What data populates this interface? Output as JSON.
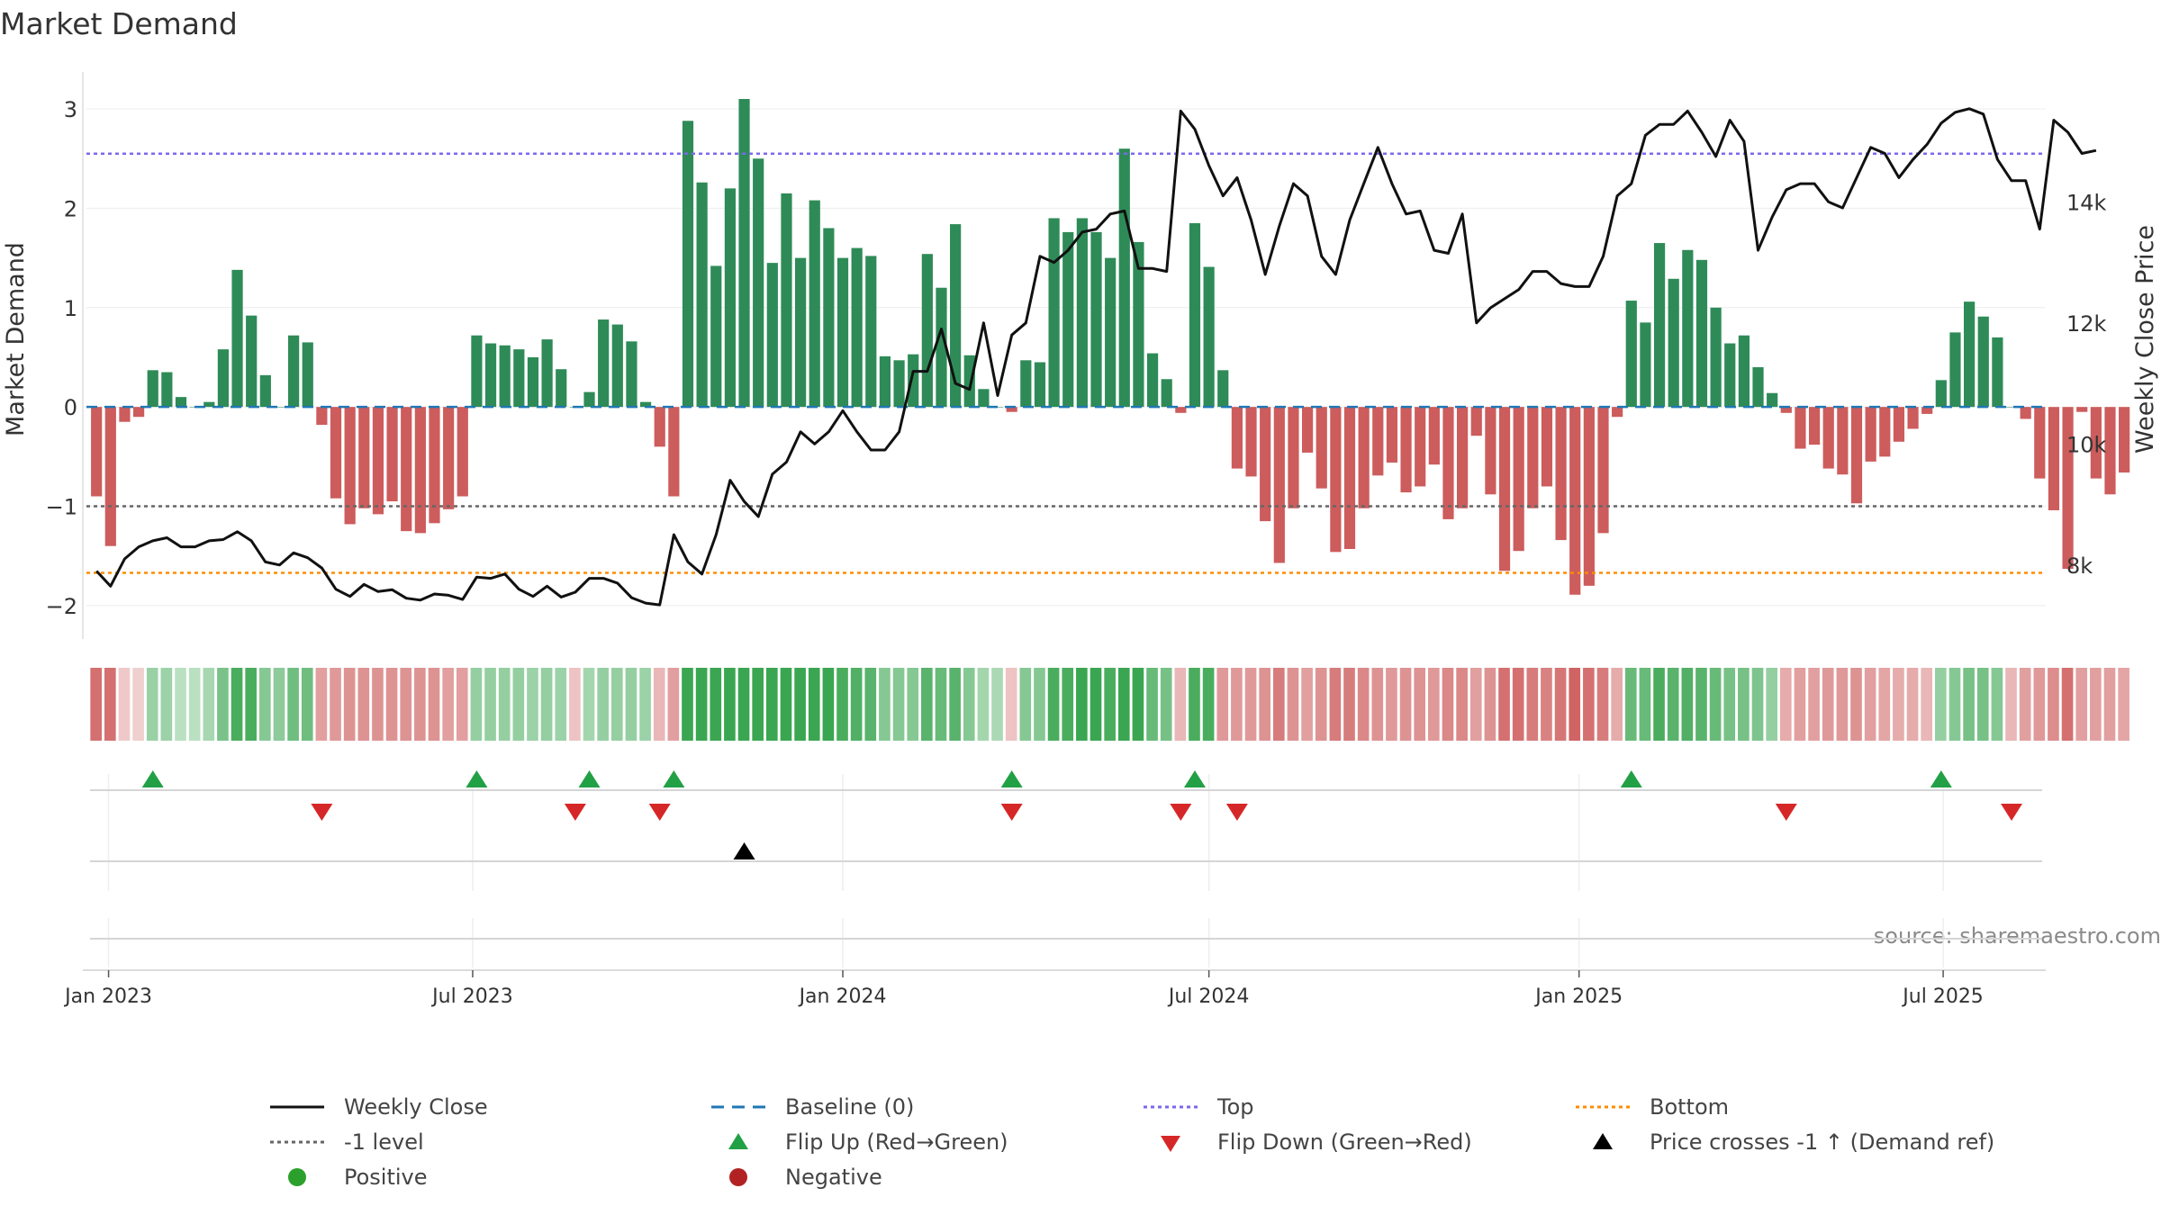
{
  "chart_data": {
    "type": "bar",
    "title": "Market Demand",
    "ylabel": "Market Demand",
    "y2label": "Weekly Close Price",
    "ylim": [
      -2.2,
      3.1
    ],
    "y2lim": [
      7000,
      15700
    ],
    "yticks": [
      -2,
      -1,
      0,
      1,
      2,
      3
    ],
    "ytick_labels": [
      "−2",
      "−1",
      "0",
      "1",
      "2",
      "3"
    ],
    "y2ticks": [
      8000,
      10000,
      12000,
      14000
    ],
    "y2tick_labels": [
      "8k",
      "10k",
      "12k",
      "14k"
    ],
    "x_start": "2022-12-26",
    "x_step_days": 7,
    "xlim_days": [
      -5,
      969
    ],
    "xticks": [
      {
        "label": "Jan 2023",
        "day": 6
      },
      {
        "label": "Jul 2023",
        "day": 187
      },
      {
        "label": "Jan 2024",
        "day": 371
      },
      {
        "label": "Jul 2024",
        "day": 553
      },
      {
        "label": "Jan 2025",
        "day": 737
      },
      {
        "label": "Jul 2025",
        "day": 918
      }
    ],
    "levels": {
      "top": 2.55,
      "minus_one": -1,
      "bottom": -1.67,
      "baseline": 0
    },
    "demand": [
      -0.9,
      -1.4,
      -0.15,
      -0.1,
      0.37,
      0.35,
      0.1,
      0.0,
      0.05,
      0.58,
      1.38,
      0.92,
      0.32,
      0.0,
      0.72,
      0.65,
      -0.18,
      -0.92,
      -1.18,
      -1.02,
      -1.08,
      -0.95,
      -1.25,
      -1.27,
      -1.17,
      -1.03,
      -0.9,
      0.72,
      0.64,
      0.62,
      0.58,
      0.5,
      0.68,
      0.38,
      0.0,
      0.15,
      0.88,
      0.83,
      0.66,
      0.05,
      -0.4,
      -0.9,
      2.88,
      2.26,
      1.42,
      2.2,
      3.1,
      2.5,
      1.45,
      2.15,
      1.5,
      2.08,
      1.8,
      1.5,
      1.6,
      1.52,
      0.51,
      0.47,
      0.53,
      1.54,
      1.2,
      1.84,
      0.52,
      0.18,
      0.0,
      -0.05,
      0.47,
      0.45,
      1.9,
      1.76,
      1.9,
      1.76,
      1.5,
      2.6,
      1.66,
      0.54,
      0.28,
      -0.06,
      1.85,
      1.41,
      0.37,
      -0.62,
      -0.7,
      -1.15,
      -1.57,
      -1.02,
      -0.46,
      -0.82,
      -1.46,
      -1.43,
      -1.02,
      -0.69,
      -0.56,
      -0.86,
      -0.8,
      -0.58,
      -1.13,
      -1.02,
      -0.29,
      -0.88,
      -1.65,
      -1.45,
      -1.02,
      -0.8,
      -1.34,
      -1.89,
      -1.8,
      -1.27,
      -0.1,
      1.07,
      0.85,
      1.65,
      1.29,
      1.58,
      1.48,
      1.0,
      0.64,
      0.72,
      0.4,
      0.14,
      -0.06,
      -0.42,
      -0.38,
      -0.62,
      -0.68,
      -0.97,
      -0.55,
      -0.5,
      -0.35,
      -0.22,
      -0.07,
      0.27,
      0.75,
      1.06,
      0.91,
      0.7,
      0.0,
      -0.12,
      -0.72,
      -1.04,
      -1.63,
      -0.05,
      -0.72,
      -0.88,
      -0.66
    ],
    "close": [
      7900,
      7650,
      8100,
      8300,
      8400,
      8450,
      8300,
      8300,
      8400,
      8420,
      8550,
      8400,
      8050,
      8000,
      8200,
      8120,
      7950,
      7600,
      7480,
      7680,
      7560,
      7590,
      7450,
      7420,
      7520,
      7500,
      7430,
      7800,
      7780,
      7850,
      7600,
      7480,
      7650,
      7470,
      7550,
      7780,
      7780,
      7700,
      7460,
      7370,
      7340,
      8500,
      8050,
      7850,
      8500,
      9400,
      9050,
      8800,
      9500,
      9700,
      10200,
      10000,
      10200,
      10550,
      10200,
      9900,
      9900,
      10200,
      11200,
      11200,
      11900,
      11000,
      10900,
      12000,
      10800,
      11800,
      12000,
      13100,
      13000,
      13200,
      13500,
      13550,
      13800,
      13850,
      12900,
      12900,
      12850,
      15500,
      15200,
      14600,
      14100,
      14400,
      13700,
      12800,
      13600,
      14300,
      14100,
      13100,
      12800,
      13700,
      14300,
      14900,
      14300,
      13800,
      13850,
      13200,
      13150,
      13800,
      12000,
      12250,
      12400,
      12550,
      12850,
      12850,
      12650,
      12600,
      12600,
      13100,
      14100,
      14300,
      15100,
      15280,
      15280,
      15500,
      15150,
      14750,
      15350,
      15000,
      13200,
      13750,
      14200,
      14300,
      14300,
      14000,
      13900,
      14400,
      14900,
      14800,
      14400,
      14700,
      14950,
      15300,
      15480,
      15540,
      15450,
      14700,
      14350,
      14350,
      13550,
      15350,
      15150,
      14800,
      14850
    ],
    "sentiment": [
      -0.9,
      -0.9,
      -0.15,
      -0.1,
      0.37,
      0.35,
      0.15,
      0.15,
      0.28,
      0.58,
      0.9,
      0.9,
      0.5,
      0.45,
      0.65,
      0.65,
      -0.5,
      -0.55,
      -0.6,
      -0.6,
      -0.6,
      -0.6,
      -0.6,
      -0.6,
      -0.6,
      -0.5,
      -0.5,
      0.4,
      0.4,
      0.4,
      0.4,
      0.35,
      0.4,
      0.35,
      -0.2,
      0.3,
      0.4,
      0.4,
      0.4,
      0.35,
      -0.3,
      -0.5,
      1.8,
      1.6,
      1.2,
      1.2,
      1.6,
      1.4,
      1.1,
      1.2,
      1.1,
      1.1,
      1.0,
      0.9,
      0.85,
      0.8,
      0.5,
      0.5,
      0.5,
      0.8,
      0.7,
      0.8,
      0.5,
      0.3,
      0.25,
      -0.2,
      0.5,
      0.5,
      0.9,
      0.9,
      1.0,
      1.0,
      0.9,
      1.3,
      1.0,
      0.7,
      0.6,
      -0.3,
      0.9,
      0.9,
      -0.55,
      -0.55,
      -0.55,
      -0.6,
      -0.8,
      -0.6,
      -0.5,
      -0.6,
      -0.8,
      -0.8,
      -0.7,
      -0.6,
      -0.55,
      -0.6,
      -0.6,
      -0.55,
      -0.7,
      -0.7,
      -0.5,
      -0.6,
      -0.9,
      -0.9,
      -0.8,
      -0.75,
      -0.85,
      -1.0,
      -0.9,
      -0.8,
      -0.4,
      0.7,
      0.7,
      0.9,
      0.8,
      0.85,
      0.8,
      0.7,
      0.6,
      0.6,
      0.55,
      0.4,
      -0.4,
      -0.5,
      -0.5,
      -0.55,
      -0.55,
      -0.6,
      -0.5,
      -0.45,
      -0.4,
      -0.4,
      -0.3,
      0.4,
      0.5,
      0.6,
      0.6,
      0.5,
      -0.3,
      -0.5,
      -0.55,
      -0.65,
      -0.9,
      -0.5,
      -0.5,
      -0.5,
      -0.45
    ],
    "flip_up_weeks": [
      4,
      27,
      35,
      41,
      65,
      78,
      109,
      131
    ],
    "flip_down_weeks": [
      16,
      34,
      40,
      65,
      77,
      81,
      120,
      136
    ],
    "price_cross_weeks": [
      46
    ],
    "source": "source: sharemaestro.com",
    "legend_position": "bottom",
    "legend": [
      {
        "label": "Weekly Close",
        "symbol": "line-black"
      },
      {
        "label": "Baseline (0)",
        "symbol": "dash-blue"
      },
      {
        "label": "Top",
        "symbol": "dot-purple"
      },
      {
        "label": "Bottom",
        "symbol": "dot-orange"
      },
      {
        "label": "-1 level",
        "symbol": "dot-gray"
      },
      {
        "label": "Flip Up (Red→Green)",
        "symbol": "tri-up-green"
      },
      {
        "label": "Flip Down (Green→Red)",
        "symbol": "tri-down-red"
      },
      {
        "label": "Price crosses -1 ↑ (Demand ref)",
        "symbol": "tri-up-black"
      },
      {
        "label": "Positive",
        "symbol": "dot-green"
      },
      {
        "label": "Negative",
        "symbol": "dot-red"
      }
    ]
  },
  "colors": {
    "positive": "#2e8b57",
    "negative": "#cd5c5c",
    "close_line": "#111111",
    "baseline": "#1f77b4",
    "top": "#7b68ee",
    "bottom": "#ff8c00",
    "minus_one": "#666666",
    "flip_up": "#22a045",
    "flip_down": "#d62728",
    "cross": "#000000",
    "legend_positive": "#2ca02c",
    "legend_negative": "#b22222"
  }
}
